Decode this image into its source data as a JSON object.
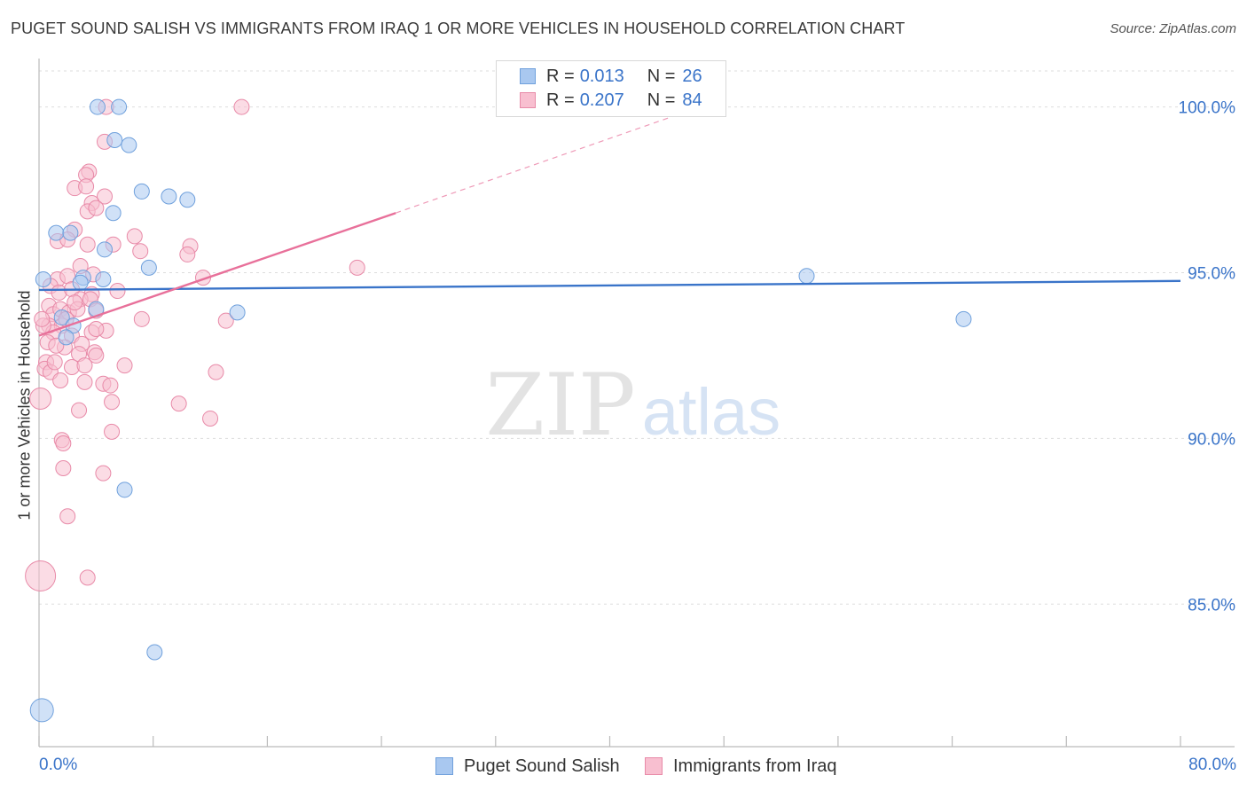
{
  "header": {
    "title": "PUGET SOUND SALISH VS IMMIGRANTS FROM IRAQ 1 OR MORE VEHICLES IN HOUSEHOLD CORRELATION CHART",
    "source": "Source: ZipAtlas.com"
  },
  "watermark": {
    "zip": "ZIP",
    "atlas": "atlas"
  },
  "legend": {
    "rows": [
      {
        "r_label": "R =",
        "r_value": "0.013",
        "n_label": "N =",
        "n_value": "26",
        "color": "#a9c8f0",
        "border": "#6fa0dc"
      },
      {
        "r_label": "R =",
        "r_value": "0.207",
        "n_label": "N =",
        "n_value": "84",
        "color": "#f8bfd0",
        "border": "#e88aa8"
      }
    ]
  },
  "bottom_legend": {
    "items": [
      {
        "label": "Puget Sound Salish",
        "color": "#a9c8f0",
        "border": "#6fa0dc"
      },
      {
        "label": "Immigrants from Iraq",
        "color": "#f8bfd0",
        "border": "#e88aa8"
      }
    ]
  },
  "chart_data": {
    "type": "scatter",
    "title": "PUGET SOUND SALISH VS IMMIGRANTS FROM IRAQ 1 OR MORE VEHICLES IN HOUSEHOLD CORRELATION CHART",
    "xlabel": "",
    "ylabel": "1 or more Vehicles in Household",
    "xlim": [
      0,
      80
    ],
    "ylim": [
      80.7,
      101.3
    ],
    "x_tick_labels": [
      "0.0%",
      "80.0%"
    ],
    "y_ticks": [
      85,
      90,
      95,
      100
    ],
    "y_tick_labels": [
      "85.0%",
      "90.0%",
      "95.0%",
      "100.0%"
    ],
    "grid": true,
    "legend_position": "top-center",
    "series": [
      {
        "name": "Puget Sound Salish",
        "color": "#a9c8f0",
        "stroke": "#6fa0dc",
        "line_color": "#3a74c9",
        "trend": {
          "x": [
            0,
            80
          ],
          "y": [
            94.48,
            94.75
          ]
        },
        "points": [
          [
            4.1,
            100.0
          ],
          [
            5.6,
            100.0
          ],
          [
            5.3,
            99.0
          ],
          [
            6.3,
            98.85
          ],
          [
            7.2,
            97.45
          ],
          [
            9.1,
            97.3
          ],
          [
            10.4,
            97.2
          ],
          [
            5.2,
            96.8
          ],
          [
            1.2,
            96.2
          ],
          [
            2.2,
            96.2
          ],
          [
            4.6,
            95.7
          ],
          [
            7.7,
            95.15
          ],
          [
            0.3,
            94.8
          ],
          [
            3.1,
            94.85
          ],
          [
            2.9,
            94.7
          ],
          [
            53.8,
            94.9
          ],
          [
            4.0,
            93.9
          ],
          [
            13.9,
            93.8
          ],
          [
            64.8,
            93.6
          ],
          [
            1.6,
            93.65
          ],
          [
            2.4,
            93.4
          ],
          [
            1.9,
            93.05
          ],
          [
            6.0,
            88.45
          ],
          [
            8.1,
            83.55
          ],
          [
            0.2,
            81.8
          ],
          [
            4.5,
            94.8
          ]
        ]
      },
      {
        "name": "Immigrants from Iraq",
        "color": "#f8bfd0",
        "stroke": "#e88aa8",
        "line_color": "#e8709a",
        "trend": {
          "x": [
            0,
            25
          ],
          "y": [
            93.1,
            96.8
          ]
        },
        "trend_dashed": {
          "x": [
            25,
            45
          ],
          "y": [
            96.8,
            99.8
          ]
        },
        "points": [
          [
            4.7,
            100.0
          ],
          [
            14.2,
            100.0
          ],
          [
            4.6,
            98.95
          ],
          [
            3.5,
            98.05
          ],
          [
            3.3,
            97.95
          ],
          [
            2.5,
            97.55
          ],
          [
            3.3,
            97.6
          ],
          [
            4.6,
            97.3
          ],
          [
            3.7,
            97.1
          ],
          [
            3.4,
            96.85
          ],
          [
            4.0,
            96.95
          ],
          [
            2.5,
            96.3
          ],
          [
            1.3,
            95.95
          ],
          [
            2.0,
            96.0
          ],
          [
            6.7,
            96.1
          ],
          [
            3.4,
            95.85
          ],
          [
            5.2,
            95.85
          ],
          [
            7.1,
            95.65
          ],
          [
            10.6,
            95.8
          ],
          [
            10.4,
            95.55
          ],
          [
            22.3,
            95.15
          ],
          [
            2.9,
            95.2
          ],
          [
            1.3,
            94.8
          ],
          [
            3.8,
            94.95
          ],
          [
            2.0,
            94.9
          ],
          [
            11.5,
            94.85
          ],
          [
            0.8,
            94.6
          ],
          [
            1.4,
            94.4
          ],
          [
            2.3,
            94.5
          ],
          [
            3.7,
            94.35
          ],
          [
            2.9,
            94.2
          ],
          [
            5.5,
            94.45
          ],
          [
            3.6,
            94.2
          ],
          [
            0.7,
            94.0
          ],
          [
            1.0,
            93.75
          ],
          [
            1.5,
            93.9
          ],
          [
            2.1,
            93.8
          ],
          [
            2.7,
            93.9
          ],
          [
            4.0,
            93.85
          ],
          [
            7.2,
            93.6
          ],
          [
            13.1,
            93.55
          ],
          [
            0.7,
            93.4
          ],
          [
            1.6,
            93.4
          ],
          [
            1.0,
            93.2
          ],
          [
            3.7,
            93.2
          ],
          [
            4.7,
            93.25
          ],
          [
            2.3,
            93.1
          ],
          [
            3.0,
            92.85
          ],
          [
            0.6,
            92.9
          ],
          [
            1.8,
            92.75
          ],
          [
            2.8,
            92.55
          ],
          [
            3.9,
            92.6
          ],
          [
            4.0,
            92.5
          ],
          [
            0.5,
            92.3
          ],
          [
            0.4,
            92.1
          ],
          [
            2.3,
            92.15
          ],
          [
            6.0,
            92.2
          ],
          [
            0.8,
            92.0
          ],
          [
            12.4,
            92.0
          ],
          [
            3.2,
            91.7
          ],
          [
            4.5,
            91.65
          ],
          [
            1.5,
            91.75
          ],
          [
            0.1,
            91.2
          ],
          [
            5.1,
            91.1
          ],
          [
            9.8,
            91.05
          ],
          [
            2.8,
            90.85
          ],
          [
            12.0,
            90.6
          ],
          [
            5.1,
            90.2
          ],
          [
            1.6,
            89.95
          ],
          [
            1.7,
            89.85
          ],
          [
            1.7,
            89.1
          ],
          [
            4.5,
            88.95
          ],
          [
            2.0,
            87.65
          ],
          [
            3.4,
            85.8
          ],
          [
            0.1,
            85.85
          ],
          [
            4.0,
            93.3
          ],
          [
            2.5,
            94.1
          ],
          [
            0.3,
            93.4
          ],
          [
            1.1,
            92.3
          ],
          [
            0.2,
            93.6
          ],
          [
            5.0,
            91.6
          ],
          [
            3.2,
            92.2
          ],
          [
            1.9,
            93.6
          ],
          [
            1.2,
            92.8
          ]
        ]
      }
    ]
  }
}
